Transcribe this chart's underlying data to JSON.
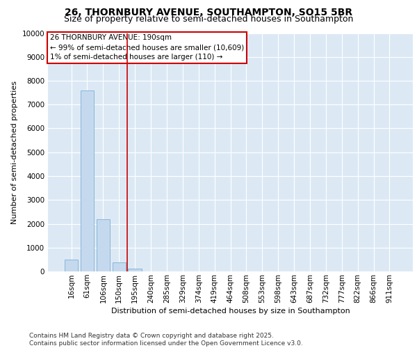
{
  "title_line1": "26, THORNBURY AVENUE, SOUTHAMPTON, SO15 5BR",
  "title_line2": "Size of property relative to semi-detached houses in Southampton",
  "xlabel": "Distribution of semi-detached houses by size in Southampton",
  "ylabel": "Number of semi-detached properties",
  "categories": [
    "16sqm",
    "61sqm",
    "106sqm",
    "150sqm",
    "195sqm",
    "240sqm",
    "285sqm",
    "329sqm",
    "374sqm",
    "419sqm",
    "464sqm",
    "508sqm",
    "553sqm",
    "598sqm",
    "643sqm",
    "687sqm",
    "732sqm",
    "777sqm",
    "822sqm",
    "866sqm",
    "911sqm"
  ],
  "values": [
    500,
    7600,
    2200,
    380,
    120,
    0,
    0,
    0,
    0,
    0,
    0,
    0,
    0,
    0,
    0,
    0,
    0,
    0,
    0,
    0,
    0
  ],
  "bar_color": "#c5d9ee",
  "bar_edge_color": "#7aafd4",
  "vline_x_pos": 3.5,
  "vline_color": "#cc0000",
  "annotation_text": "26 THORNBURY AVENUE: 190sqm\n← 99% of semi-detached houses are smaller (10,609)\n1% of semi-detached houses are larger (110) →",
  "annotation_box_color": "#ffffff",
  "annotation_box_edge": "#cc0000",
  "ylim": [
    0,
    10000
  ],
  "yticks": [
    0,
    1000,
    2000,
    3000,
    4000,
    5000,
    6000,
    7000,
    8000,
    9000,
    10000
  ],
  "background_color": "#dce9f5",
  "footer_text": "Contains HM Land Registry data © Crown copyright and database right 2025.\nContains public sector information licensed under the Open Government Licence v3.0.",
  "title_fontsize": 10,
  "subtitle_fontsize": 9,
  "axis_label_fontsize": 8,
  "tick_fontsize": 7.5,
  "annotation_fontsize": 7.5,
  "footer_fontsize": 6.5
}
